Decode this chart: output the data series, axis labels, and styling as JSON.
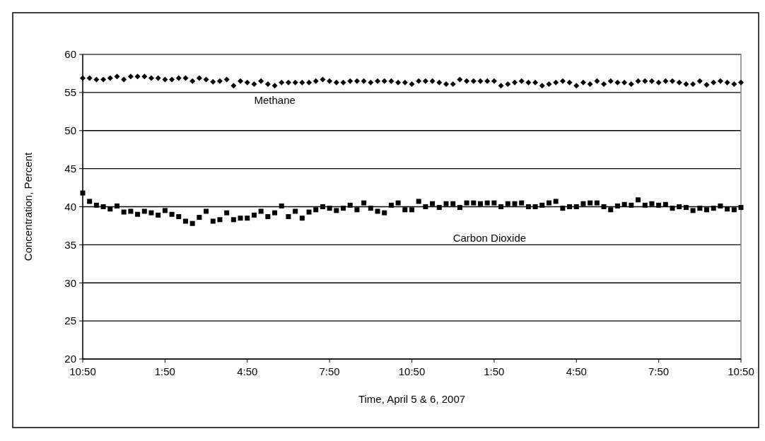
{
  "chart_data": {
    "type": "scatter",
    "xlabel": "Time, April 5 & 6, 2007",
    "ylabel": "Concentration, Percent",
    "categories": [
      "10:50",
      null,
      null,
      null,
      null,
      null,
      null,
      null,
      null,
      null,
      null,
      null,
      "1:50",
      null,
      null,
      null,
      null,
      null,
      null,
      null,
      null,
      null,
      null,
      null,
      "4:50",
      null,
      null,
      null,
      null,
      null,
      null,
      null,
      null,
      null,
      null,
      null,
      "7:50",
      null,
      null,
      null,
      null,
      null,
      null,
      null,
      null,
      null,
      null,
      null,
      "10:50",
      null,
      null,
      null,
      null,
      null,
      null,
      null,
      null,
      null,
      null,
      null,
      "1:50",
      null,
      null,
      null,
      null,
      null,
      null,
      null,
      null,
      null,
      null,
      null,
      "4:50",
      null,
      null,
      null,
      null,
      null,
      null,
      null,
      null,
      null,
      null,
      null,
      "7:50",
      null,
      null,
      null,
      null,
      null,
      null,
      null,
      null,
      null,
      null,
      null,
      "10:50"
    ],
    "series": [
      {
        "name": "Methane",
        "color": "#000000",
        "marker": "diamond",
        "values": [
          56.9,
          56.9,
          56.7,
          56.7,
          56.9,
          57.1,
          56.7,
          57.1,
          57.1,
          57.1,
          56.9,
          56.9,
          56.7,
          56.7,
          56.9,
          56.9,
          56.5,
          56.9,
          56.7,
          56.4,
          56.5,
          56.7,
          55.9,
          56.5,
          56.3,
          56.1,
          56.5,
          56.1,
          55.9,
          56.3,
          56.3,
          56.3,
          56.3,
          56.3,
          56.5,
          56.7,
          56.5,
          56.3,
          56.3,
          56.5,
          56.5,
          56.5,
          56.3,
          56.5,
          56.5,
          56.5,
          56.3,
          56.3,
          56.1,
          56.5,
          56.5,
          56.5,
          56.3,
          56.1,
          56.1,
          56.7,
          56.5,
          56.5,
          56.5,
          56.5,
          56.5,
          55.9,
          56.1,
          56.3,
          56.5,
          56.3,
          56.3,
          55.9,
          56.1,
          56.3,
          56.5,
          56.3,
          55.9,
          56.3,
          56.1,
          56.5,
          56.1,
          56.5,
          56.3,
          56.3,
          56.1,
          56.5,
          56.5,
          56.5,
          56.3,
          56.5,
          56.5,
          56.3,
          56.1,
          56.1,
          56.5,
          56.0,
          56.3,
          56.5,
          56.3,
          56.1,
          56.3
        ]
      },
      {
        "name": "Carbon Dioxide",
        "color": "#000000",
        "marker": "square",
        "values": [
          41.8,
          40.7,
          40.2,
          40.0,
          39.7,
          40.1,
          39.3,
          39.4,
          39.0,
          39.4,
          39.2,
          38.9,
          39.5,
          39.0,
          38.7,
          38.1,
          37.8,
          38.6,
          39.4,
          38.1,
          38.3,
          39.2,
          38.3,
          38.5,
          38.5,
          38.9,
          39.4,
          38.7,
          39.2,
          40.1,
          38.7,
          39.4,
          38.5,
          39.3,
          39.6,
          40.0,
          39.8,
          39.5,
          39.8,
          40.2,
          39.6,
          40.5,
          39.8,
          39.4,
          39.2,
          40.2,
          40.5,
          39.6,
          39.6,
          40.7,
          40.0,
          40.4,
          39.9,
          40.4,
          40.4,
          39.9,
          40.5,
          40.5,
          40.4,
          40.5,
          40.5,
          40.0,
          40.4,
          40.4,
          40.5,
          40.0,
          40.0,
          40.2,
          40.5,
          40.7,
          39.8,
          40.0,
          40.0,
          40.4,
          40.5,
          40.5,
          40.0,
          39.6,
          40.1,
          40.3,
          40.2,
          40.9,
          40.2,
          40.4,
          40.2,
          40.3,
          39.8,
          40.0,
          39.9,
          39.5,
          39.8,
          39.6,
          39.8,
          40.1,
          39.7,
          39.6,
          39.9
        ]
      }
    ],
    "ylim": [
      20,
      60
    ],
    "yticks": [
      20,
      25,
      30,
      35,
      40,
      45,
      50,
      55,
      60
    ],
    "grid": "y"
  }
}
